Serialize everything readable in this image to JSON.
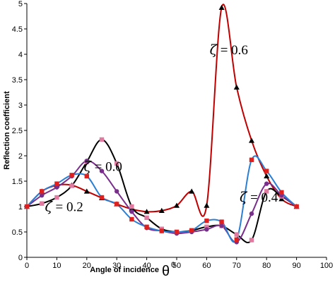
{
  "chart_data": {
    "type": "line",
    "title": "",
    "xlabel": "Angle of incidence",
    "xlabel_symbol": "θ",
    "xlabel_superscript": "0",
    "ylabel": "Reflection coefficient",
    "xlim": [
      0,
      100
    ],
    "ylim": [
      0,
      5
    ],
    "xticks": [
      "0",
      "10",
      "20",
      "30",
      "40",
      "50",
      "60",
      "70",
      "80",
      "90",
      "100"
    ],
    "yticks": [
      "0",
      "0.5",
      "1",
      "1.5",
      "2",
      "2.5",
      "3",
      "3.5",
      "4",
      "4.5",
      "5"
    ],
    "grid": false,
    "legend": "none",
    "annotations": [
      {
        "symbol": "ζ",
        "text": " = 0.6",
        "x": 61,
        "y": 4.0
      },
      {
        "symbol": "ζ",
        "text": " = 0.0",
        "x": 19,
        "y": 1.7
      },
      {
        "symbol": "ζ",
        "text": " = 0.2",
        "x": 6,
        "y": 0.91
      },
      {
        "symbol": "ζ",
        "text": " = 0.4",
        "x": 71,
        "y": 1.1
      }
    ],
    "series": [
      {
        "color": "#c00000",
        "marker": "triangle",
        "marker_color": "#000000",
        "x": [
          0,
          5,
          10,
          15,
          20,
          25,
          30,
          35,
          40,
          45,
          50,
          55,
          60,
          65,
          70,
          75,
          80,
          85,
          90
        ],
        "y": [
          1.0,
          1.3,
          1.42,
          1.42,
          1.3,
          1.17,
          1.05,
          0.95,
          0.9,
          0.92,
          1.02,
          1.3,
          1.02,
          4.92,
          3.35,
          2.3,
          1.6,
          1.15,
          1.0
        ]
      },
      {
        "color": "#000000",
        "marker": "square",
        "marker_color": "#e07aa0",
        "x": [
          0,
          5,
          10,
          15,
          20,
          25,
          30,
          35,
          40,
          45,
          50,
          55,
          60,
          65,
          70,
          75,
          80,
          85,
          90
        ],
        "y": [
          1.0,
          1.06,
          1.18,
          1.41,
          1.88,
          2.32,
          1.85,
          1.0,
          0.78,
          0.56,
          0.5,
          0.53,
          0.6,
          0.62,
          0.45,
          0.34,
          1.3,
          1.2,
          1.0
        ]
      },
      {
        "color": "#7a2e8c",
        "marker": "circle",
        "marker_color": "#7a2e8c",
        "x": [
          0,
          5,
          10,
          15,
          20,
          25,
          30,
          35,
          40,
          45,
          50,
          55,
          60,
          65,
          70,
          75,
          80,
          85,
          90
        ],
        "y": [
          1.0,
          1.22,
          1.38,
          1.6,
          1.9,
          1.7,
          1.3,
          0.9,
          0.58,
          0.52,
          0.47,
          0.5,
          0.55,
          0.62,
          0.3,
          0.86,
          1.45,
          1.22,
          1.0
        ]
      },
      {
        "color": "#2a7fd4",
        "marker": "square",
        "marker_color": "#e0201e",
        "x": [
          0,
          5,
          10,
          15,
          20,
          25,
          30,
          35,
          40,
          45,
          50,
          55,
          60,
          65,
          70,
          75,
          80,
          85,
          90
        ],
        "y": [
          1.0,
          1.3,
          1.45,
          1.62,
          1.6,
          1.18,
          1.05,
          0.75,
          0.6,
          0.52,
          0.5,
          0.53,
          0.72,
          0.7,
          0.35,
          1.92,
          1.7,
          1.28,
          1.0
        ]
      }
    ]
  }
}
